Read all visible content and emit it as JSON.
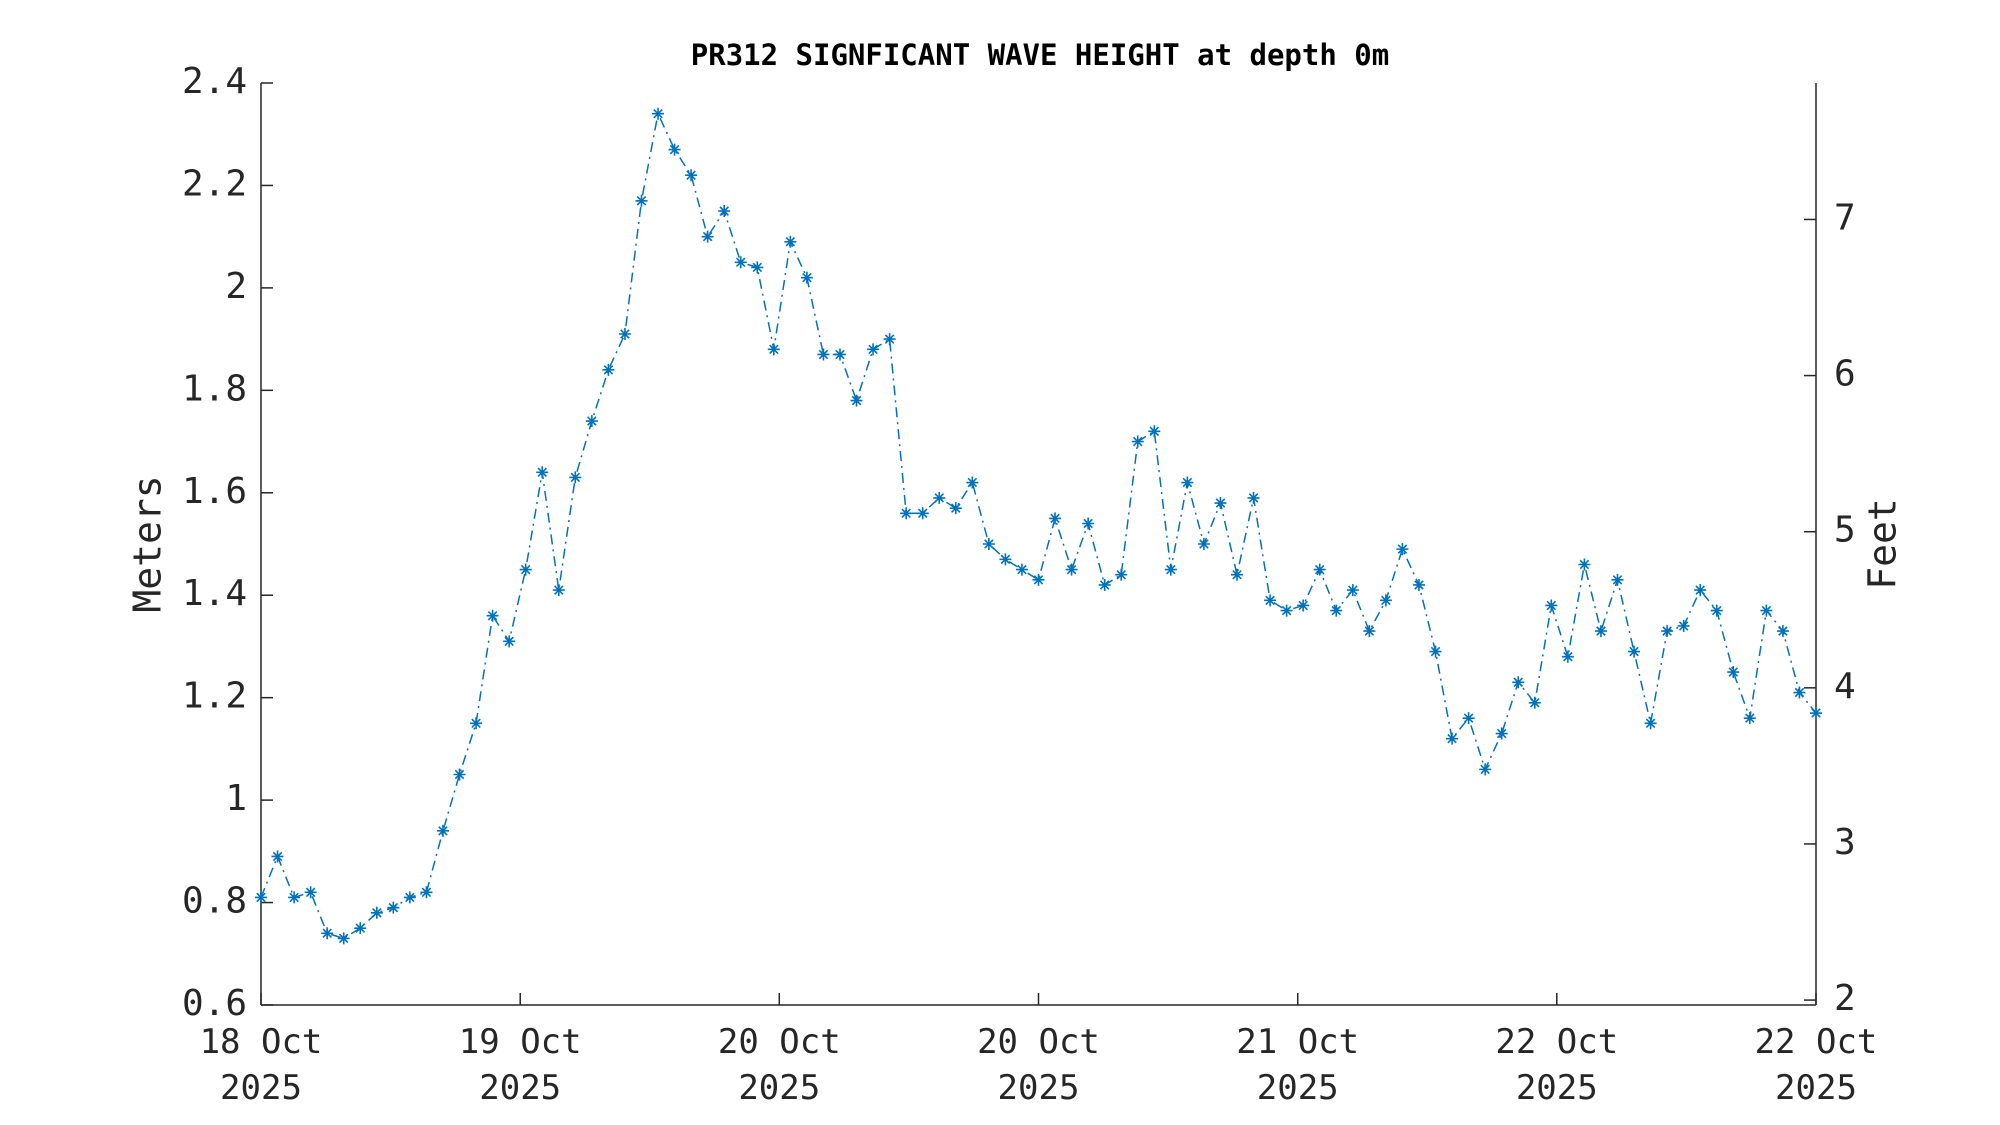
{
  "chart_data": {
    "type": "line",
    "title": "PR312 SIGNFICANT WAVE HEIGHT at depth 0m",
    "y_label": "Meters",
    "y2_label": "Feet",
    "x": [
      0,
      1,
      2,
      3,
      4,
      5,
      6,
      7,
      8,
      9,
      10,
      11,
      12,
      13,
      14,
      15,
      16,
      17,
      18,
      19,
      20,
      21,
      22,
      23,
      24,
      25,
      26,
      27,
      28,
      29,
      30,
      31,
      32,
      33,
      34,
      35,
      36,
      37,
      38,
      39,
      40,
      41,
      42,
      43,
      44,
      45,
      46,
      47,
      48,
      49,
      50,
      51,
      52,
      53,
      54,
      55,
      56,
      57,
      58,
      59,
      60,
      61,
      62,
      63,
      64,
      65,
      66,
      67,
      68,
      69,
      70,
      71,
      72,
      73,
      74,
      75,
      76,
      77,
      78,
      79,
      80,
      81,
      82,
      83,
      84,
      85,
      86,
      87,
      88,
      89,
      90,
      91,
      92,
      93,
      94
    ],
    "series": [
      {
        "color": "#0072bd",
        "values": [
          0.81,
          0.89,
          0.81,
          0.82,
          0.74,
          0.73,
          0.75,
          0.78,
          0.79,
          0.81,
          0.82,
          0.94,
          1.05,
          1.15,
          1.36,
          1.31,
          1.45,
          1.64,
          1.41,
          1.63,
          1.74,
          1.84,
          1.91,
          2.17,
          2.34,
          2.27,
          2.22,
          2.1,
          2.15,
          2.05,
          2.04,
          1.88,
          2.09,
          2.02,
          1.87,
          1.87,
          1.78,
          1.88,
          1.9,
          1.56,
          1.56,
          1.59,
          1.57,
          1.62,
          1.5,
          1.47,
          1.45,
          1.43,
          1.55,
          1.45,
          1.54,
          1.42,
          1.44,
          1.7,
          1.72,
          1.45,
          1.62,
          1.5,
          1.58,
          1.44,
          1.59,
          1.39,
          1.37,
          1.38,
          1.45,
          1.37,
          1.41,
          1.33,
          1.39,
          1.49,
          1.42,
          1.29,
          1.12,
          1.16,
          1.06,
          1.13,
          1.23,
          1.19,
          1.38,
          1.28,
          1.46,
          1.33,
          1.43,
          1.29,
          1.15,
          1.33,
          1.34,
          1.41,
          1.37,
          1.25,
          1.16,
          1.37,
          1.33,
          1.21,
          1.17
        ]
      }
    ],
    "xlim": [
      0,
      94
    ],
    "xticks": [
      {
        "value": 0,
        "label": "18 Oct\n2025"
      },
      {
        "value": 15.67,
        "label": "19 Oct\n2025"
      },
      {
        "value": 31.33,
        "label": "20 Oct\n2025"
      },
      {
        "value": 47,
        "label": "20 Oct\n2025"
      },
      {
        "value": 62.67,
        "label": "21 Oct\n2025"
      },
      {
        "value": 78.33,
        "label": "22 Oct\n2025"
      },
      {
        "value": 94,
        "label": "22 Oct\n2025"
      }
    ],
    "ylim": [
      0.6,
      2.4
    ],
    "yticks": [
      0.6,
      0.8,
      1,
      1.2,
      1.4,
      1.6,
      1.8,
      2,
      2.2,
      2.4
    ],
    "y2lim": [
      1.9685,
      7.874
    ],
    "y2ticks": [
      2,
      3,
      4,
      5,
      6,
      7
    ]
  }
}
